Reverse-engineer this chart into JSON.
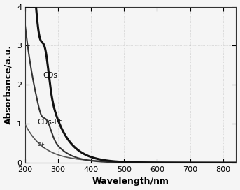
{
  "xlabel": "Wavelength/nm",
  "ylabel": "Absorbance/a.u.",
  "xlim": [
    200,
    840
  ],
  "ylim": [
    0,
    4
  ],
  "yticks": [
    0,
    1,
    2,
    3,
    4
  ],
  "xticks": [
    200,
    300,
    400,
    500,
    600,
    700,
    800
  ],
  "grid_color": "#bbbbbb",
  "background_color": "#f5f5f5",
  "line_color_CDs": "#111111",
  "line_color_CDsPt": "#333333",
  "line_color_Pt": "#555555",
  "label_CDs": "CDs",
  "label_CDsPt": "CDs-Pt",
  "label_Pt": "Pt",
  "linewidth_CDs": 2.2,
  "linewidth_CDsPt": 1.5,
  "linewidth_Pt": 1.2
}
